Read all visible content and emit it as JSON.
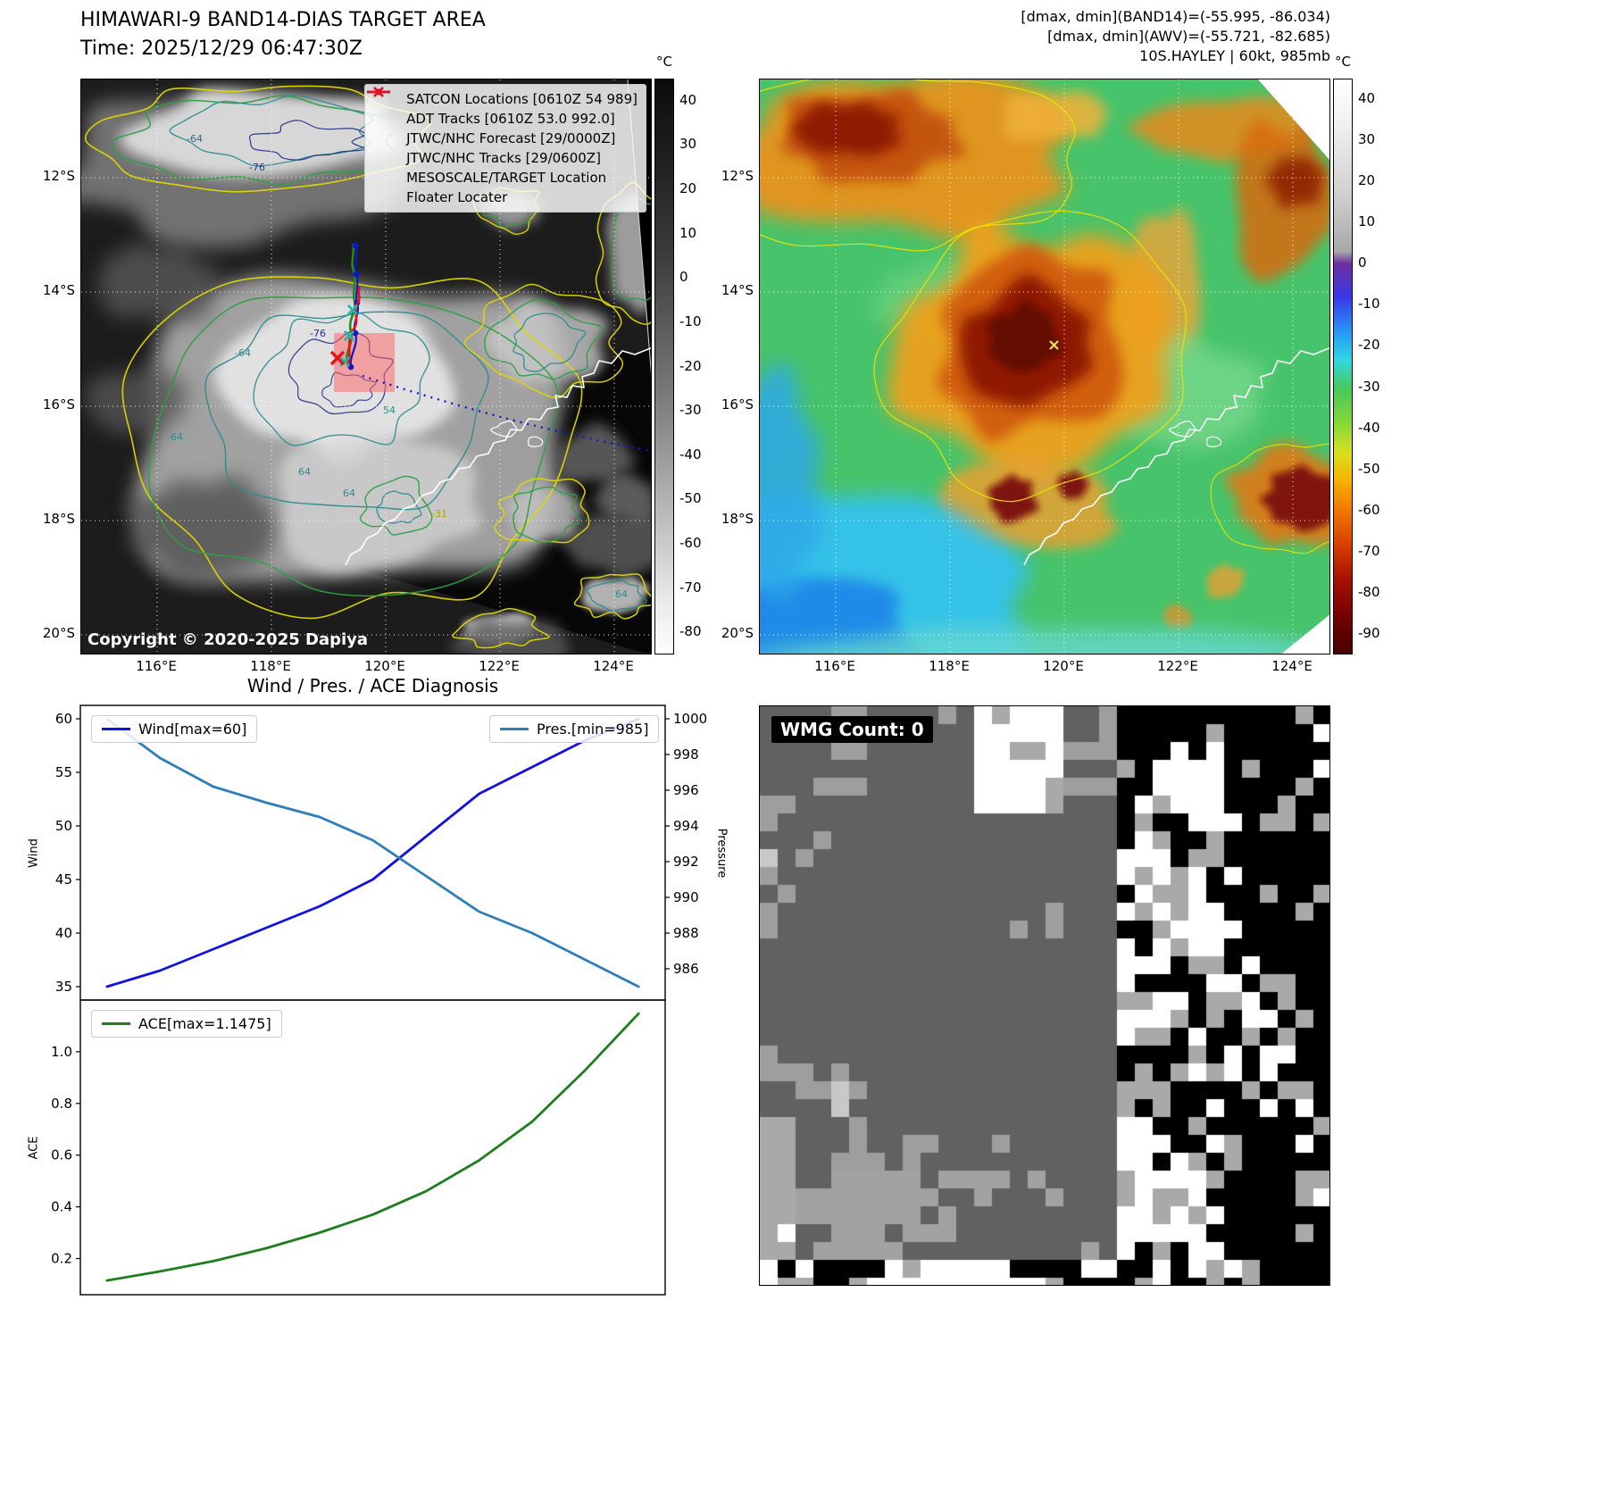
{
  "band14_panel": {
    "title": "HIMAWARI-9 BAND14-DIAS TARGET AREA",
    "time_line": "Time: 2025/12/29 06:47:30Z",
    "copyright": "Copyright © 2020-2025 Dapiya",
    "colorbar_unit": "°C",
    "colorbar_ticks": [
      40,
      30,
      20,
      10,
      0,
      -10,
      -20,
      -30,
      -40,
      -50,
      -60,
      -70,
      -80
    ],
    "lon_ticks": [
      "116°E",
      "118°E",
      "120°E",
      "122°E",
      "124°E"
    ],
    "lat_ticks": [
      "12°S",
      "14°S",
      "16°S",
      "18°S",
      "20°S"
    ],
    "legend": [
      {
        "label": "SATCON Locations [0610Z 54 989]",
        "marker": "x",
        "color": "#23b8ac"
      },
      {
        "label": "ADT Tracks [0610Z 53.0 992.0]",
        "marker": "line",
        "color": "#1e8c1e"
      },
      {
        "label": "JTWC/NHC Forecast [29/0000Z]",
        "marker": "dotted",
        "color": "#1414cc"
      },
      {
        "label": "JTWC/NHC Tracks [29/0600Z]",
        "marker": "linedot",
        "color": "#1414cc"
      },
      {
        "label": "MESOSCALE/TARGET Location",
        "marker": "x",
        "color": "#ee1111"
      },
      {
        "label": "Floater Locater",
        "marker": "line",
        "color": "#ee1111"
      }
    ],
    "contour_labels": [
      "-64",
      "-76",
      "-64",
      "-76",
      "-64",
      "54",
      "64",
      "64",
      "-31",
      "64"
    ]
  },
  "awv_panel": {
    "header_lines": [
      "[dmax, dmin](BAND14)=(-55.995, -86.034)",
      "[dmax, dmin](AWV)=(-55.721, -82.685)",
      "10S.HAYLEY | 60kt, 985mb"
    ],
    "colorbar_unit": "°C",
    "colorbar_ticks": [
      40,
      30,
      20,
      10,
      0,
      -10,
      -20,
      -30,
      -40,
      -50,
      -60,
      -70,
      -80,
      -90
    ],
    "lon_ticks": [
      "116°E",
      "118°E",
      "120°E",
      "122°E",
      "124°E"
    ],
    "lat_ticks": [
      "12°S",
      "14°S",
      "16°S",
      "18°S",
      "20°S"
    ]
  },
  "diagnosis": {
    "title": "Wind / Pres. / ACE Diagnosis",
    "ylabel_wind": "Wind",
    "ylabel_pressure": "Pressure",
    "ylabel_ace": "ACE"
  },
  "wmg_panel": {
    "label": "WMG Count: 0"
  },
  "chart_data": [
    {
      "type": "line",
      "title": "Wind / Pres. / ACE Diagnosis",
      "x": [
        0,
        1,
        2,
        3,
        4,
        5,
        6,
        7,
        8,
        9,
        10
      ],
      "series": [
        {
          "name": "Wind[max=60]",
          "axis": "left",
          "color": "#1212e0",
          "values": [
            35,
            36.5,
            38.5,
            40.5,
            42.5,
            45,
            49,
            53,
            55.5,
            58,
            60
          ]
        },
        {
          "name": "Pres.[min=985]",
          "axis": "right",
          "color": "#2e7eb8",
          "values": [
            1000,
            997.8,
            996.2,
            995.3,
            994.5,
            993.2,
            991.2,
            989.2,
            988,
            986.5,
            985
          ]
        }
      ],
      "left_ticks": [
        35,
        40,
        45,
        50,
        55,
        60
      ],
      "right_ticks": [
        986,
        988,
        990,
        992,
        994,
        996,
        998,
        1000
      ],
      "left_lim": [
        33.75,
        61.25
      ],
      "right_lim": [
        984.25,
        1000.75
      ],
      "xlim": [
        -0.5,
        10.5
      ]
    },
    {
      "type": "line",
      "x": [
        0,
        1,
        2,
        3,
        4,
        5,
        6,
        7,
        8,
        9,
        10
      ],
      "series": [
        {
          "name": "ACE[max=1.1475]",
          "color": "#1e7d1e",
          "values": [
            0.115,
            0.15,
            0.19,
            0.24,
            0.3,
            0.37,
            0.46,
            0.58,
            0.73,
            0.93,
            1.1475
          ]
        }
      ],
      "left_ticks": [
        0.2,
        0.4,
        0.6,
        0.8,
        1.0
      ],
      "left_lim": [
        0.06,
        1.2
      ],
      "xlim": [
        -0.5,
        10.5
      ],
      "decimals": 1
    }
  ]
}
